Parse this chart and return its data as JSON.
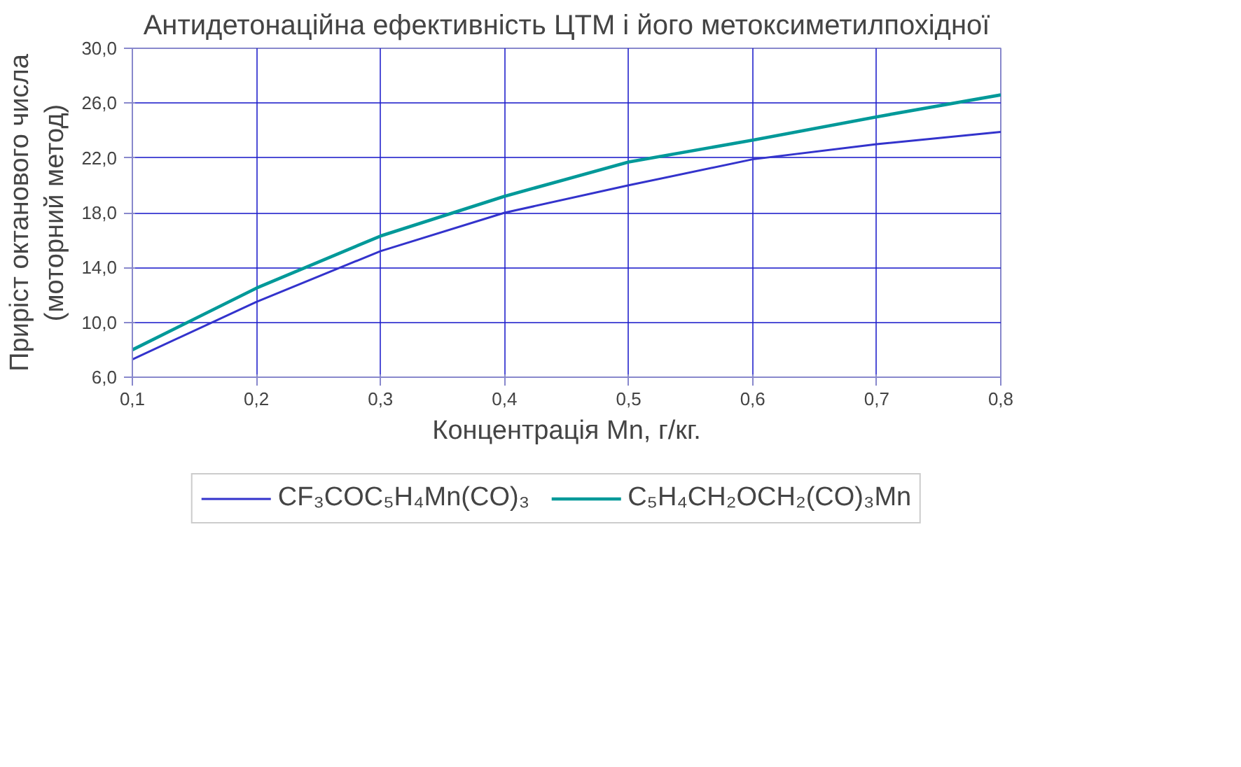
{
  "chart_data": {
    "type": "line",
    "title": "Антидетонаційна ефективність ЦТМ і його метоксиметилпохідної",
    "xlabel": "Концентрація Mn, г/кг.",
    "ylabel": "Приріст октанового числа\n(моторний метод)",
    "x": [
      0.1,
      0.2,
      0.3,
      0.4,
      0.5,
      0.6,
      0.7,
      0.8
    ],
    "series": [
      {
        "name": "CF₃COC₅H₄Mn(CO)₃",
        "color": "#3333cc",
        "values": [
          7.3,
          11.5,
          15.2,
          18.0,
          20.0,
          21.9,
          23.0,
          23.9
        ]
      },
      {
        "name": "C₅H₄CH₂OCH₂(CO)₃Mn",
        "color": "#009999",
        "values": [
          8.0,
          12.5,
          16.3,
          19.2,
          21.7,
          23.3,
          25.0,
          26.6
        ]
      }
    ],
    "xlim": [
      0.1,
      0.8
    ],
    "ylim": [
      6,
      30
    ],
    "xticks": [
      {
        "value": 0.1,
        "label": "0,1"
      },
      {
        "value": 0.2,
        "label": "0,2"
      },
      {
        "value": 0.3,
        "label": "0,3"
      },
      {
        "value": 0.4,
        "label": "0,4"
      },
      {
        "value": 0.5,
        "label": "0,5"
      },
      {
        "value": 0.6,
        "label": "0,6"
      },
      {
        "value": 0.7,
        "label": "0,7"
      },
      {
        "value": 0.8,
        "label": "0,8"
      }
    ],
    "yticks": [
      {
        "value": 6,
        "label": "6,0"
      },
      {
        "value": 10,
        "label": "10,0"
      },
      {
        "value": 14,
        "label": "14,0"
      },
      {
        "value": 18,
        "label": "18,0"
      },
      {
        "value": 22,
        "label": "22,0"
      },
      {
        "value": 26,
        "label": "26,0"
      },
      {
        "value": 30,
        "label": "30,0"
      }
    ],
    "grid": true,
    "legend": "bottom",
    "marker": "none",
    "line_style": "solid"
  }
}
